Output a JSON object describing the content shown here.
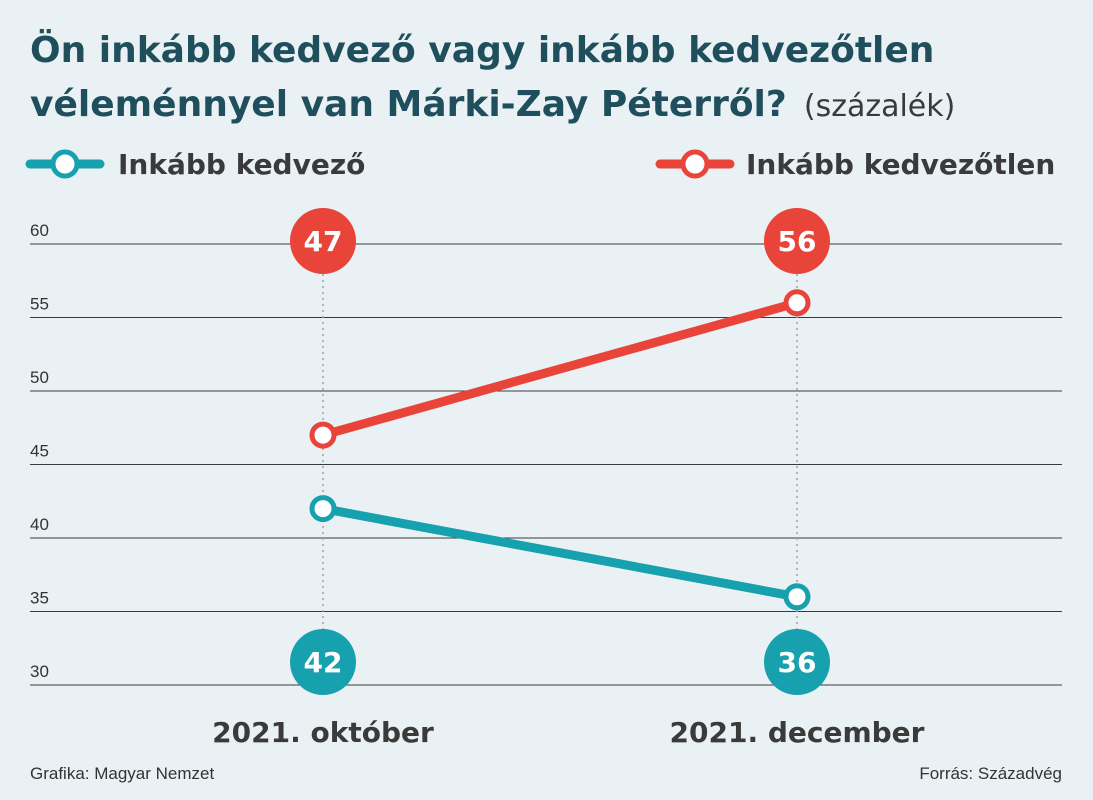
{
  "title_line1": "Ön inkább kedvező vagy inkább kedvezőtlen",
  "title_line2": "véleménnyel van Márki-Zay Péterről?",
  "title_unit": "(százalék)",
  "footer_left": "Grafika: Magyar Nemzet",
  "footer_right": "Forrás: Századvég",
  "colors": {
    "favorable": "#17a0ad",
    "unfavorable": "#e8443a",
    "grid": "#3a3a3a"
  },
  "chart_data": {
    "type": "line",
    "title": "Ön inkább kedvező vagy inkább kedvezőtlen véleménnyel van Márki-Zay Péterről? (százalék)",
    "categories": [
      "2021. október",
      "2021. december"
    ],
    "ylim": [
      30,
      60
    ],
    "yticks": [
      60,
      55,
      50,
      45,
      40,
      35,
      30
    ],
    "grid": true,
    "legend_position": "top",
    "series": [
      {
        "name": "Inkább kedvező",
        "values": [
          42,
          36
        ],
        "color": "#17a0ad"
      },
      {
        "name": "Inkább kedvezőtlen",
        "values": [
          47,
          56
        ],
        "color": "#e8443a"
      }
    ]
  }
}
